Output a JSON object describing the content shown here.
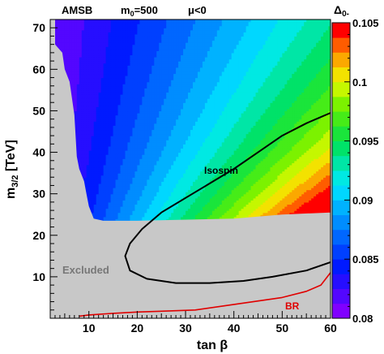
{
  "chart_data": {
    "type": "heatmap",
    "title_parts": {
      "model": "AMSB",
      "m0_label": "m",
      "m0_sub": "0",
      "m0_value": "=500",
      "mu_label": "μ<0"
    },
    "xlabel": "tan β",
    "ylabel": {
      "base": "m",
      "sub": "3/2",
      "unit": " [TeV]"
    },
    "xlim": [
      2,
      60
    ],
    "ylim": [
      0,
      72
    ],
    "x_ticks": [
      10,
      20,
      30,
      40,
      50,
      60
    ],
    "y_ticks": [
      10,
      20,
      30,
      40,
      50,
      60,
      70
    ],
    "colorbar": {
      "title": "Δ",
      "title_sub": "0-",
      "min": 0.08,
      "max": 0.105,
      "ticks": [
        "0.08",
        "0.085",
        "0.09",
        "0.095",
        "0.1",
        "0.105"
      ],
      "tick_values": [
        0.08,
        0.085,
        0.09,
        0.095,
        0.1,
        0.105
      ],
      "levels": 20
    },
    "field_description": "Delta_0- increases towards large tan beta; values near 0.08-0.087 at small tan beta, up to ~0.101 at tan beta 60 just above the excluded boundary",
    "excluded_region": {
      "label": "Excluded",
      "color": "#c8c8c8",
      "boundary": [
        [
          2,
          72
        ],
        [
          3,
          72
        ],
        [
          3,
          66
        ],
        [
          4.5,
          64
        ],
        [
          5,
          60
        ],
        [
          6,
          57
        ],
        [
          7,
          49
        ],
        [
          7.5,
          39
        ],
        [
          8,
          36
        ],
        [
          9,
          33
        ],
        [
          9.5,
          30
        ],
        [
          10,
          27
        ],
        [
          11,
          24
        ],
        [
          13,
          23.5
        ],
        [
          20,
          23.5
        ],
        [
          40,
          24
        ],
        [
          50,
          25
        ],
        [
          60,
          25.5
        ]
      ]
    },
    "contours": [
      {
        "name": "Isospin",
        "color": "#000000",
        "points": [
          [
            60,
            49.5
          ],
          [
            55,
            47
          ],
          [
            50,
            44
          ],
          [
            45,
            40
          ],
          [
            40,
            36
          ],
          [
            35,
            32.5
          ],
          [
            30,
            29
          ],
          [
            25,
            25.5
          ],
          [
            21,
            21.5
          ],
          [
            18.5,
            18
          ],
          [
            17.5,
            15
          ],
          [
            18.5,
            11.5
          ],
          [
            22,
            9.5
          ],
          [
            28,
            8.5
          ],
          [
            35,
            8.5
          ],
          [
            42,
            9
          ],
          [
            48,
            10
          ],
          [
            55,
            11.5
          ],
          [
            60,
            13.5
          ]
        ]
      },
      {
        "name": "BR",
        "color": "#e00000",
        "points": [
          [
            8,
            0.5
          ],
          [
            10,
            0.8
          ],
          [
            15,
            1.2
          ],
          [
            20,
            1.5
          ],
          [
            25,
            1.7
          ],
          [
            32,
            2
          ],
          [
            38,
            3
          ],
          [
            44,
            4
          ],
          [
            50,
            5
          ],
          [
            55,
            6.5
          ],
          [
            58,
            8
          ],
          [
            60,
            11
          ]
        ]
      }
    ]
  }
}
